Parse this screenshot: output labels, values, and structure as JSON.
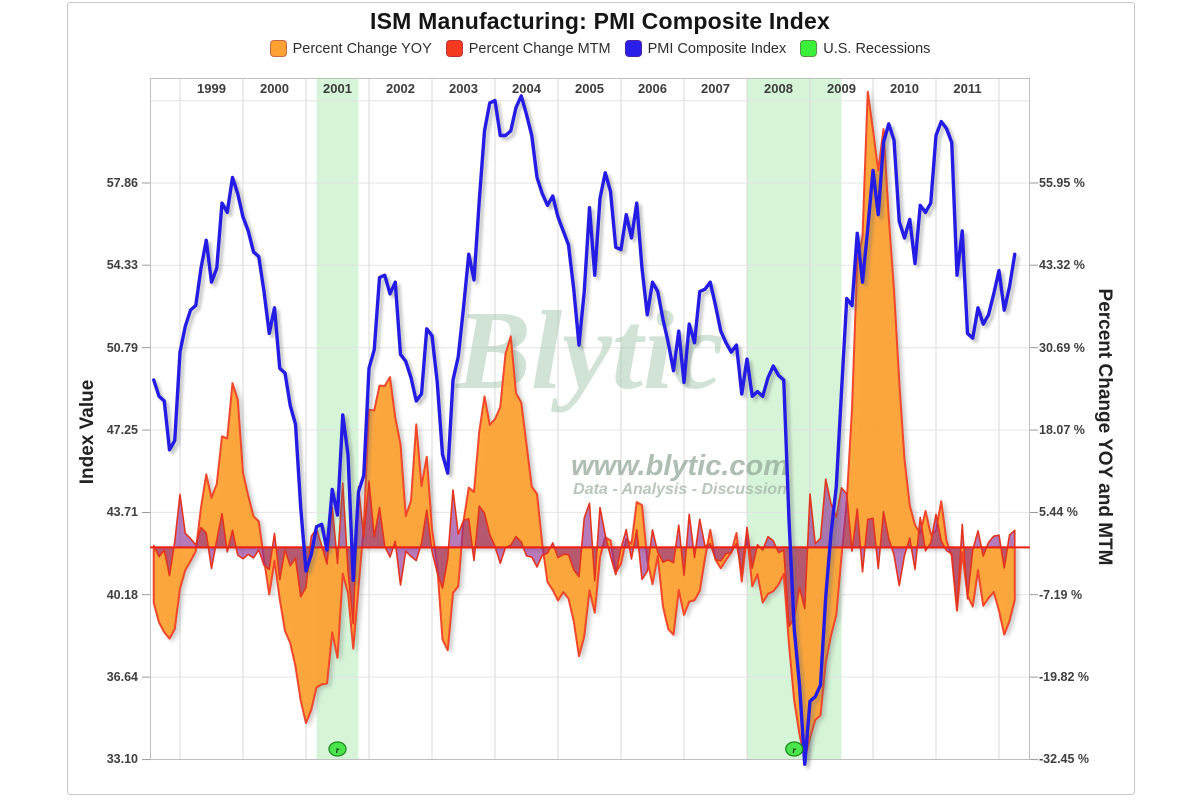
{
  "header": {
    "title": "ISM Manufacturing: PMI Composite Index"
  },
  "legend": {
    "items": [
      {
        "label": "Percent Change YOY",
        "color": "#ffa233"
      },
      {
        "label": "Percent Change MTM",
        "color": "#f43b20"
      },
      {
        "label": "PMI Composite Index",
        "color": "#2a1fe8"
      },
      {
        "label": "U.S. Recessions",
        "color": "#3bf03b"
      }
    ]
  },
  "watermark": {
    "brand": "Blytic",
    "url": "www.blytic.com",
    "tagline": "Data - Analysis - Discussion"
  },
  "chart_data": {
    "type": "line",
    "title": "ISM Manufacturing: PMI Composite Index",
    "x_start": "1998-08",
    "x_end": "2012-04",
    "x_year_labels": [
      "1999",
      "2000",
      "2001",
      "2002",
      "2003",
      "2004",
      "2005",
      "2006",
      "2007",
      "2008",
      "2009",
      "2010",
      "2011"
    ],
    "left_axis": {
      "title": "Index Value",
      "tick_labels": [
        "57.86",
        "54.33",
        "50.79",
        "47.25",
        "43.71",
        "40.18",
        "36.64",
        "33.10"
      ],
      "ticks": [
        57.86,
        54.33,
        50.79,
        47.25,
        43.71,
        40.18,
        36.64,
        33.1
      ]
    },
    "right_axis": {
      "title": "Percent Change YOY and MTM",
      "tick_labels": [
        "55.95 %",
        "43.32 %",
        "30.69 %",
        "18.07 %",
        "5.44 %",
        "-7.19 %",
        "-19.82 %",
        "-32.45 %"
      ],
      "ticks_pct": [
        55.95,
        43.32,
        30.69,
        18.07,
        5.44,
        -7.19,
        -19.82,
        -32.45
      ]
    },
    "series": [
      {
        "name": "PMI Composite Index",
        "type": "line",
        "color": "#241ce4",
        "monthly_values": [
          49.4,
          48.7,
          48.5,
          46.4,
          46.8,
          50.6,
          51.7,
          52.4,
          52.6,
          54.2,
          55.4,
          53.6,
          54.2,
          57.0,
          56.6,
          58.1,
          57.4,
          56.4,
          55.8,
          54.9,
          54.7,
          53.2,
          51.4,
          52.5,
          49.9,
          49.7,
          48.3,
          47.5,
          43.9,
          41.2,
          41.9,
          43.1,
          43.2,
          42.1,
          44.7,
          43.6,
          47.9,
          46.2,
          40.8,
          44.6,
          45.3,
          49.9,
          50.7,
          53.8,
          53.9,
          53.1,
          53.6,
          50.5,
          50.2,
          49.5,
          48.5,
          48.8,
          51.6,
          51.3,
          49.3,
          46.2,
          45.4,
          49.4,
          50.4,
          52.5,
          54.8,
          53.7,
          57.1,
          60.1,
          61.3,
          61.4,
          59.9,
          59.9,
          60.1,
          61.1,
          61.6,
          60.8,
          59.9,
          58.1,
          57.4,
          56.9,
          57.3,
          56.4,
          55.8,
          55.2,
          53.3,
          50.9,
          53.2,
          56.8,
          53.9,
          57.2,
          58.3,
          57.5,
          55.1,
          55.0,
          56.5,
          55.5,
          57.0,
          54.2,
          52.2,
          53.6,
          53.2,
          52.0,
          51.0,
          49.8,
          51.5,
          49.3,
          51.8,
          51.0,
          53.2,
          53.3,
          53.6,
          52.6,
          51.5,
          51.0,
          50.6,
          50.9,
          48.8,
          50.3,
          48.7,
          48.9,
          48.7,
          49.5,
          50.0,
          49.6,
          49.4,
          43.4,
          38.7,
          36.3,
          32.9,
          35.6,
          35.8,
          36.3,
          40.1,
          42.8,
          44.8,
          48.9,
          52.9,
          52.6,
          55.7,
          53.6,
          55.9,
          58.4,
          56.5,
          59.6,
          60.4,
          59.7,
          56.2,
          55.5,
          56.3,
          54.4,
          56.9,
          56.6,
          57.0,
          59.9,
          60.5,
          60.2,
          59.6,
          53.9,
          55.8,
          51.4,
          51.2,
          52.5,
          51.8,
          52.2,
          53.1,
          54.1,
          52.4,
          53.4,
          54.8
        ]
      },
      {
        "name": "Percent Change YOY",
        "type": "area",
        "color": "#ffa233",
        "derived": "yoy_percent_change_of_pmi",
        "lead_in_yoy_pct": [
          -8.5,
          -11.5,
          -13.0,
          -14.0,
          -12.5,
          -6.3,
          -3.5,
          -2.1,
          -0.6,
          6.1,
          11.2,
          7.6
        ]
      },
      {
        "name": "Percent Change MTM",
        "type": "area",
        "color": "#f43b20",
        "derived": "mtm_percent_change_of_pmi",
        "first_mtm_pct": 0.3
      }
    ],
    "recessions": {
      "legend_label": "U.S. Recessions",
      "band_color": "#d6f5d8",
      "marker_glyph": "r",
      "periods": [
        {
          "start": "2001-03",
          "end": "2001-11"
        },
        {
          "start": "2008-01",
          "end": "2009-07"
        }
      ]
    },
    "zero_line_pct": 0,
    "grid": true,
    "legend_position": "top"
  }
}
